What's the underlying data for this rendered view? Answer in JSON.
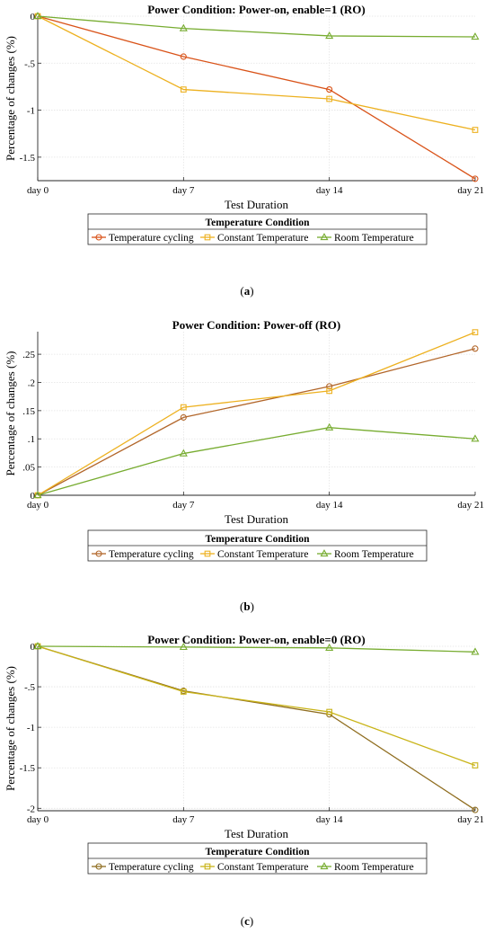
{
  "chart_data": [
    {
      "type": "line",
      "panel_label": "(a)",
      "title": "Power Condition: Power-on, enable=1 (RO)",
      "xlabel": "Test Duration",
      "ylabel": "Percentage of changes (%)",
      "categories": [
        "day 0",
        "day 7",
        "day 14",
        "day 21"
      ],
      "ylim": [
        -1.75,
        0
      ],
      "yticks": [
        0,
        -0.5,
        -1,
        -1.5
      ],
      "grid": true,
      "legend_title": "Temperature Condition",
      "legend_placement": "below",
      "series": [
        {
          "name": "Temperature cycling",
          "marker": "circle",
          "color": "#d95319",
          "values": [
            0,
            -0.43,
            -0.78,
            -1.73
          ]
        },
        {
          "name": "Constant Temperature",
          "marker": "square",
          "color": "#edb120",
          "values": [
            0,
            -0.78,
            -0.88,
            -1.21
          ]
        },
        {
          "name": "Room Temperature",
          "marker": "triangle",
          "color": "#77ac30",
          "values": [
            0,
            -0.13,
            -0.21,
            -0.22
          ]
        }
      ]
    },
    {
      "type": "line",
      "panel_label": "(b)",
      "title": "Power Condition: Power-off (RO)",
      "xlabel": "Test Duration",
      "ylabel": "Percentage of changes (%)",
      "categories": [
        "day 0",
        "day 7",
        "day 14",
        "day 21"
      ],
      "ylim": [
        0,
        0.29
      ],
      "yticks": [
        0,
        0.05,
        0.1,
        0.15,
        0.2,
        0.25
      ],
      "grid": true,
      "legend_title": "Temperature Condition",
      "legend_placement": "below",
      "series": [
        {
          "name": "Temperature cycling",
          "marker": "circle",
          "color": "#b2662a",
          "values": [
            0,
            0.138,
            0.193,
            0.26
          ]
        },
        {
          "name": "Constant Temperature",
          "marker": "square",
          "color": "#edb120",
          "values": [
            0,
            0.156,
            0.185,
            0.289
          ]
        },
        {
          "name": "Room Temperature",
          "marker": "triangle",
          "color": "#77ac30",
          "values": [
            0,
            0.074,
            0.12,
            0.1
          ]
        }
      ]
    },
    {
      "type": "line",
      "panel_label": "(c)",
      "title": "Power Condition: Power-on, enable=0 (RO)",
      "xlabel": "Test Duration",
      "ylabel": "Percentage of changes (%)",
      "categories": [
        "day 0",
        "day 7",
        "day 14",
        "day 21"
      ],
      "ylim": [
        -2.03,
        0
      ],
      "yticks": [
        0,
        -0.5,
        -1,
        -1.5,
        -2
      ],
      "grid": true,
      "legend_title": "Temperature Condition",
      "legend_placement": "below",
      "series": [
        {
          "name": "Temperature cycling",
          "marker": "circle",
          "color": "#8f6d1f",
          "values": [
            0,
            -0.55,
            -0.84,
            -2.02
          ]
        },
        {
          "name": "Constant Temperature",
          "marker": "square",
          "color": "#c9b418",
          "values": [
            0,
            -0.56,
            -0.81,
            -1.47
          ]
        },
        {
          "name": "Room Temperature",
          "marker": "triangle",
          "color": "#77ac30",
          "values": [
            0,
            -0.01,
            -0.02,
            -0.07
          ]
        }
      ]
    }
  ]
}
